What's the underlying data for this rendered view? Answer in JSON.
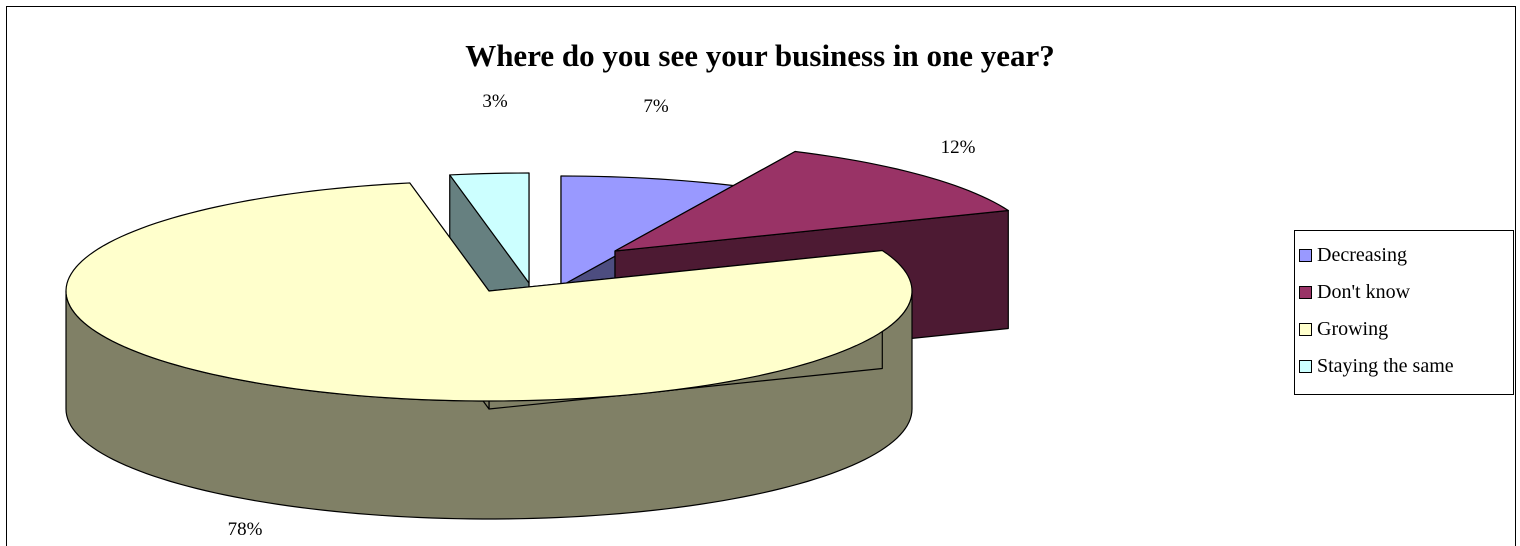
{
  "chart_data": {
    "type": "pie",
    "title": "Where do you see your business in one year?",
    "categories": [
      "Decreasing",
      "Don't know",
      "Growing",
      "Staying the same"
    ],
    "values": [
      7,
      12,
      78,
      3
    ],
    "labels": [
      "7%",
      "12%",
      "78%",
      "3%"
    ],
    "legend_position": "right",
    "style": "3d-exploded"
  },
  "colors": {
    "Decreasing": {
      "top": "#9999ff",
      "side": "#4d4d80"
    },
    "Don't know": {
      "top": "#993366",
      "side": "#4d1a33"
    },
    "Growing": {
      "top": "#ffffcc",
      "side": "#808066"
    },
    "Staying the same": {
      "top": "#ccffff",
      "side": "#668080"
    }
  }
}
